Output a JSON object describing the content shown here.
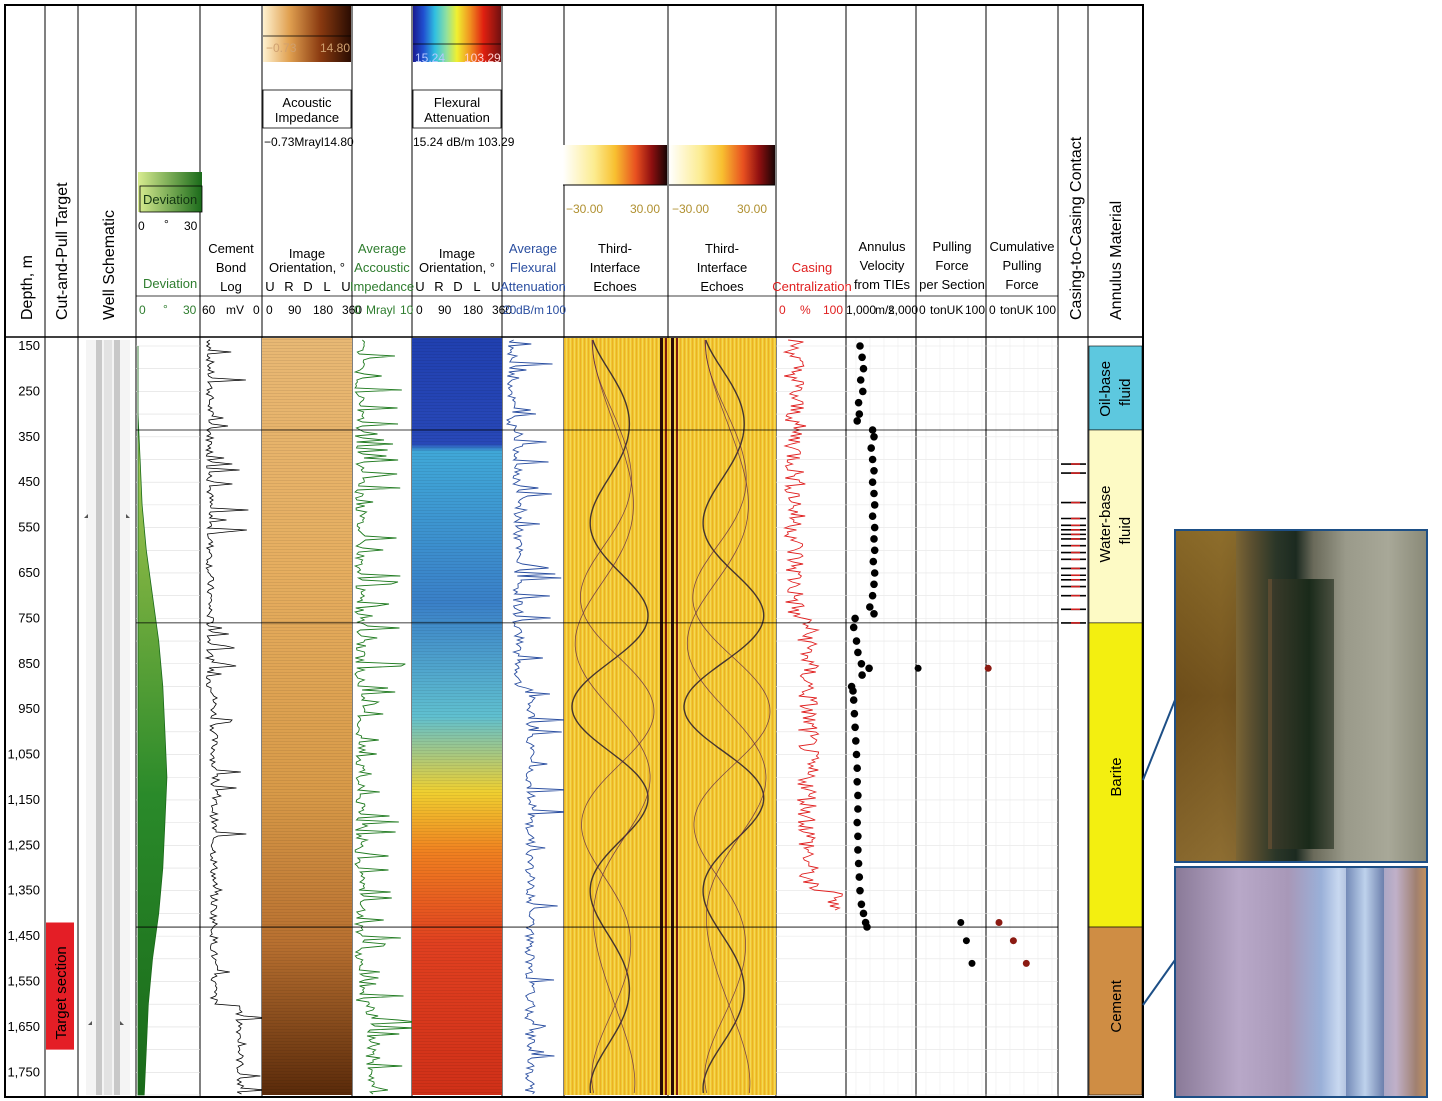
{
  "chart_data": {
    "type": "well-log",
    "depth_axis": {
      "label": "Depth, m",
      "ticks": [
        "150",
        "250",
        "350",
        "450",
        "550",
        "650",
        "750",
        "850",
        "950",
        "1,050",
        "1,150",
        "1,250",
        "1,350",
        "1,450",
        "1,550",
        "1,650",
        "1,750"
      ],
      "range": [
        150,
        1800
      ]
    },
    "tracks": {
      "cut_pull": {
        "title": "Cut-and-Pull Target",
        "target_label": "Target section",
        "target_range": [
          1420,
          1700
        ]
      },
      "schematic": {
        "title": "Well Schematic"
      },
      "deviation": {
        "title": "Deviation",
        "legend_title": "Deviation",
        "legend_min": "0",
        "legend_unit": "°",
        "legend_max": "30",
        "scale_min": "0",
        "scale_unit": "°",
        "scale_max": "30",
        "profile": [
          [
            150,
            0
          ],
          [
            300,
            0
          ],
          [
            400,
            1
          ],
          [
            500,
            2
          ],
          [
            600,
            4
          ],
          [
            700,
            7
          ],
          [
            800,
            10
          ],
          [
            900,
            12
          ],
          [
            1000,
            13
          ],
          [
            1100,
            14
          ],
          [
            1200,
            13
          ],
          [
            1300,
            12
          ],
          [
            1400,
            10
          ],
          [
            1500,
            7
          ],
          [
            1600,
            5
          ],
          [
            1700,
            4
          ],
          [
            1800,
            3
          ]
        ]
      },
      "cbl": {
        "title1": "Cement",
        "title2": "Bond",
        "title3": "Log",
        "scale_min": "60",
        "scale_unit": "mV",
        "scale_max": "0"
      },
      "ai_image": {
        "title1": "Image",
        "title2": "Orientation, °",
        "orient": [
          "U",
          "R",
          "D",
          "L",
          "U"
        ],
        "scale": [
          "0",
          "90",
          "180",
          "360"
        ],
        "colorbar_min": "−0.73",
        "colorbar_max": "14.80",
        "colorbar_title1": "Acoustic",
        "colorbar_title2": "Impedance",
        "colorbar_range": "−0.73Mrayl14.80"
      },
      "avg_ai": {
        "title1": "Average",
        "title2": "Accoustic",
        "title3": "Impedance",
        "scale_min": "0",
        "scale_unit": "Mrayl",
        "scale_max": "10"
      },
      "fa_image": {
        "title1": "Image",
        "title2": "Orientation, °",
        "orient": [
          "U",
          "R",
          "D",
          "L",
          "U"
        ],
        "scale": [
          "0",
          "90",
          "180",
          "360"
        ],
        "colorbar_min": "15.24",
        "colorbar_max": "103.29",
        "colorbar_title1": "Flexural",
        "colorbar_title2": "Attenuation",
        "colorbar_range": "15.24 dB/m 103.29"
      },
      "avg_fa": {
        "title1": "Average",
        "title2": "Flexural",
        "title3": "Attenuation",
        "scale_min": "20",
        "scale_unit": "dB/m",
        "scale_max": "100"
      },
      "tie1": {
        "title1": "Third-",
        "title2": "Interface",
        "title3": "Echoes",
        "colorbar_min": "−30.00",
        "colorbar_max": "30.00"
      },
      "tie2": {
        "title1": "Third-",
        "title2": "Interface",
        "title3": "Echoes",
        "colorbar_min": "−30.00",
        "colorbar_max": "30.00"
      },
      "centralization": {
        "title1": "Casing",
        "title2": "Centralization",
        "scale_min": "0",
        "scale_unit": "%",
        "scale_max": "100"
      },
      "annulus_velocity": {
        "title1": "Annulus",
        "title2": "Velocity",
        "title3": "from TIEs",
        "scale_min": "1,000",
        "scale_unit": "m/s",
        "scale_max": "2,000",
        "points": [
          [
            150,
            1200
          ],
          [
            175,
            1230
          ],
          [
            200,
            1250
          ],
          [
            225,
            1210
          ],
          [
            250,
            1240
          ],
          [
            275,
            1180
          ],
          [
            300,
            1190
          ],
          [
            315,
            1160
          ],
          [
            335,
            1380
          ],
          [
            350,
            1400
          ],
          [
            375,
            1360
          ],
          [
            400,
            1380
          ],
          [
            425,
            1400
          ],
          [
            450,
            1380
          ],
          [
            475,
            1400
          ],
          [
            500,
            1410
          ],
          [
            525,
            1380
          ],
          [
            550,
            1410
          ],
          [
            575,
            1400
          ],
          [
            600,
            1410
          ],
          [
            625,
            1390
          ],
          [
            650,
            1410
          ],
          [
            675,
            1400
          ],
          [
            700,
            1380
          ],
          [
            725,
            1340
          ],
          [
            740,
            1400
          ],
          [
            750,
            1130
          ],
          [
            770,
            1110
          ],
          [
            800,
            1150
          ],
          [
            825,
            1170
          ],
          [
            850,
            1220
          ],
          [
            860,
            1330
          ],
          [
            875,
            1230
          ],
          [
            900,
            1080
          ],
          [
            910,
            1100
          ],
          [
            930,
            1110
          ],
          [
            960,
            1120
          ],
          [
            990,
            1130
          ],
          [
            1020,
            1140
          ],
          [
            1050,
            1150
          ],
          [
            1080,
            1160
          ],
          [
            1110,
            1160
          ],
          [
            1140,
            1170
          ],
          [
            1170,
            1170
          ],
          [
            1200,
            1160
          ],
          [
            1230,
            1170
          ],
          [
            1260,
            1170
          ],
          [
            1290,
            1180
          ],
          [
            1320,
            1190
          ],
          [
            1350,
            1200
          ],
          [
            1380,
            1220
          ],
          [
            1400,
            1250
          ],
          [
            1420,
            1280
          ],
          [
            1430,
            1300
          ]
        ]
      },
      "pulling_force": {
        "title1": "Pulling",
        "title2": "Force",
        "title3": "per Section",
        "scale_min": "0",
        "scale_unit": "tonUK",
        "scale_max": "100",
        "points": [
          [
            860,
            3
          ],
          [
            1420,
            64
          ],
          [
            1460,
            72
          ],
          [
            1510,
            80
          ]
        ]
      },
      "cumulative_force": {
        "title1": "Cumulative",
        "title2": "Pulling",
        "title3": "Force",
        "scale_min": "0",
        "scale_unit": "tonUK",
        "scale_max": "100",
        "points": [
          [
            860,
            3
          ],
          [
            1420,
            18
          ],
          [
            1460,
            38
          ],
          [
            1510,
            56
          ]
        ]
      },
      "contact": {
        "title": "Casing-to-Casing Contact",
        "marks": [
          410,
          430,
          495,
          530,
          545,
          555,
          565,
          575,
          590,
          605,
          620,
          640,
          655,
          665,
          680,
          700,
          730,
          760
        ]
      },
      "annulus_material": {
        "title": "Annulus Material",
        "zones": [
          {
            "label1": "Oil-base",
            "label2": "fluid",
            "from": 150,
            "to": 335,
            "color": "#5dc8df"
          },
          {
            "label1": "Water-base",
            "label2": "fluid",
            "from": 335,
            "to": 760,
            "color": "#fdfac5"
          },
          {
            "label1": "Barite",
            "label2": "",
            "from": 760,
            "to": 1430,
            "color": "#f3ef10"
          },
          {
            "label1": "Cement",
            "label2": "",
            "from": 1430,
            "to": 1800,
            "color": "#cf8d44"
          }
        ]
      }
    },
    "zone_boundaries": [
      335,
      760,
      1430
    ]
  }
}
